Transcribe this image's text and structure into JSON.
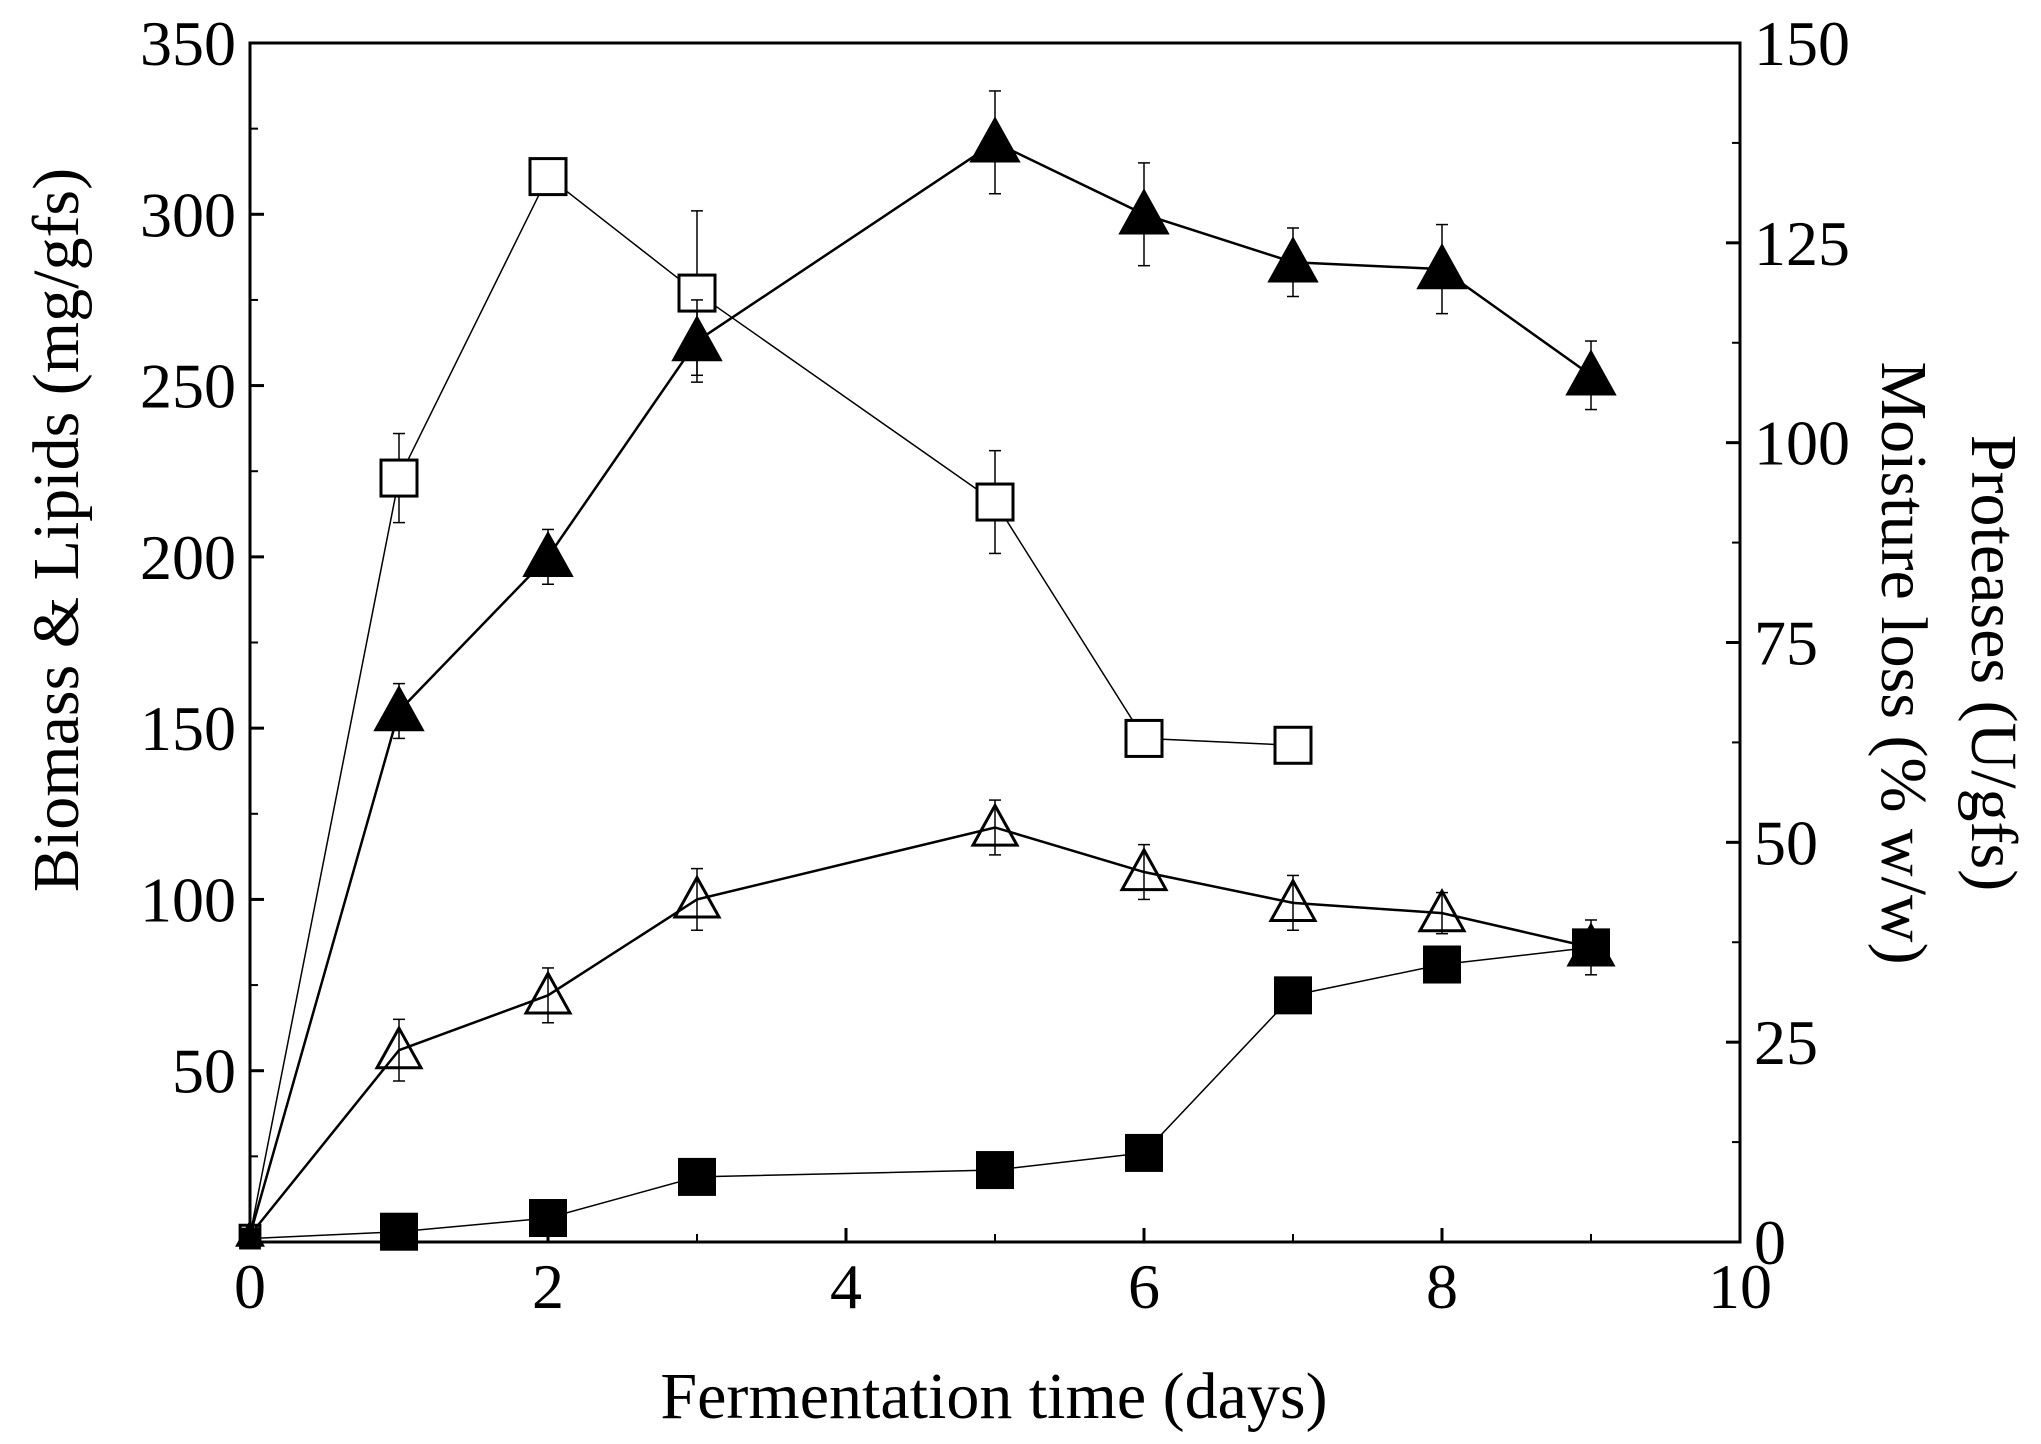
{
  "chart_data": {
    "type": "line",
    "title": "",
    "xlabel": "Fermentation time (days)",
    "ylabel_left": "Biomass & Lipids (mg/gfs)",
    "ylabel_right": [
      "Proteases (U/gfs)",
      "Moisture loss (% w/w)"
    ],
    "xlim": [
      0,
      10
    ],
    "ylim_left": [
      0,
      350
    ],
    "ylim_right": [
      0,
      150
    ],
    "x_ticks": [
      "0",
      "2",
      "4",
      "6",
      "8",
      "10"
    ],
    "y_left_ticks": [
      "50",
      "100",
      "150",
      "200",
      "250",
      "300",
      "350"
    ],
    "y_right_ticks": [
      "0",
      "25",
      "50",
      "75",
      "100",
      "125",
      "150"
    ],
    "grid": false,
    "series": [
      {
        "name": "Proteases (open squares)",
        "marker": "square-open",
        "axis": "left",
        "x": [
          0,
          1,
          2,
          3,
          5,
          6,
          7
        ],
        "y": [
          2,
          223,
          311,
          277,
          216,
          147,
          145
        ],
        "err": [
          0,
          13,
          2,
          24,
          15,
          3,
          2
        ]
      },
      {
        "name": "Biomass (filled triangles)",
        "marker": "triangle-filled",
        "axis": "left",
        "x": [
          0,
          1,
          2,
          3,
          5,
          6,
          7,
          8,
          9
        ],
        "y": [
          2,
          155,
          200,
          263,
          321,
          300,
          286,
          284,
          253
        ],
        "err": [
          0,
          8,
          8,
          12,
          15,
          15,
          10,
          13,
          10
        ]
      },
      {
        "name": "Lipids (open triangles)",
        "marker": "triangle-open",
        "axis": "left",
        "x": [
          0,
          1,
          2,
          3,
          5,
          6,
          7,
          8,
          9
        ],
        "y": [
          2,
          56,
          72,
          100,
          121,
          108,
          99,
          96,
          86
        ],
        "err": [
          0,
          9,
          8,
          9,
          8,
          8,
          8,
          6,
          8
        ]
      },
      {
        "name": "Moisture loss (filled squares)",
        "marker": "square-filled",
        "axis": "left",
        "x": [
          0,
          1,
          2,
          3,
          5,
          6,
          7,
          8,
          9
        ],
        "y": [
          1,
          3,
          7,
          19,
          21,
          26,
          72,
          81,
          86
        ],
        "err": [
          0,
          0,
          0,
          0,
          0,
          0,
          0,
          0,
          0
        ]
      }
    ]
  }
}
